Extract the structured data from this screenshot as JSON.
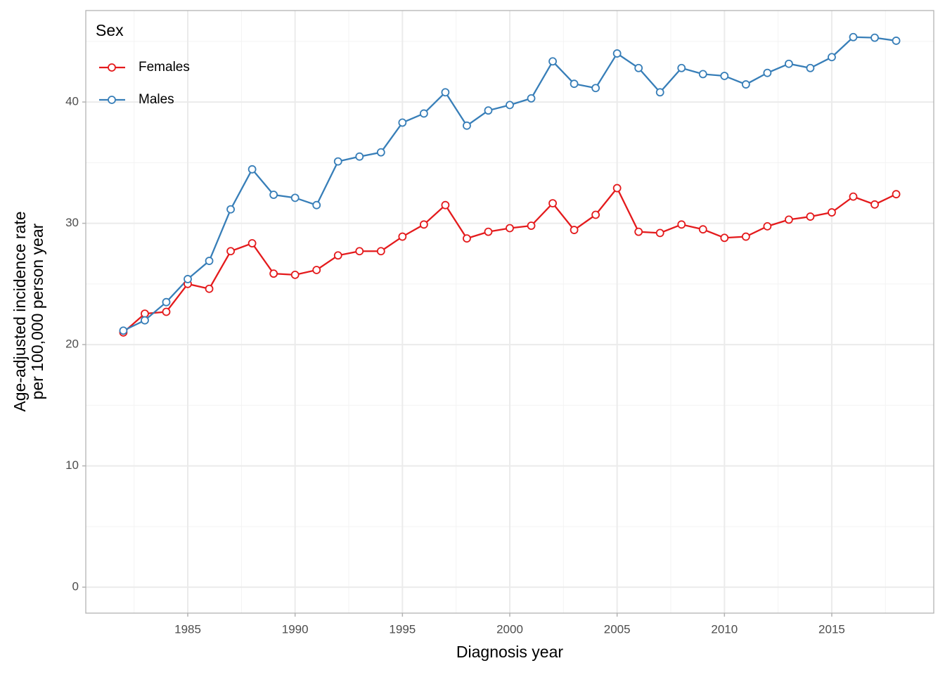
{
  "chart_data": {
    "type": "line",
    "x_label": "Diagnosis year",
    "y_label": [
      "Age-adjusted incidence rate",
      "per 100,000 person year"
    ],
    "legend_title": "Sex",
    "legend_position": "top-left",
    "grid": true,
    "x": [
      1982,
      1983,
      1984,
      1985,
      1986,
      1987,
      1988,
      1989,
      1990,
      1991,
      1992,
      1993,
      1994,
      1995,
      1996,
      1997,
      1998,
      1999,
      2000,
      2001,
      2002,
      2003,
      2004,
      2005,
      2006,
      2007,
      2008,
      2009,
      2010,
      2011,
      2012,
      2013,
      2014,
      2015,
      2016,
      2017,
      2018
    ],
    "series": [
      {
        "name": "Females",
        "color": "#e41a1c",
        "values": [
          21.0,
          22.55,
          22.7,
          25.0,
          24.6,
          27.7,
          28.35,
          25.85,
          25.75,
          26.15,
          27.35,
          27.7,
          27.7,
          28.9,
          29.9,
          31.5,
          28.75,
          29.3,
          29.6,
          29.8,
          31.65,
          29.45,
          30.7,
          32.9,
          29.3,
          29.2,
          29.9,
          29.5,
          28.8,
          28.9,
          29.75,
          30.3,
          30.55,
          30.9,
          32.2,
          31.55,
          32.4
        ]
      },
      {
        "name": "Males",
        "color": "#377eb8",
        "values": [
          21.15,
          22.0,
          23.5,
          25.4,
          26.9,
          31.15,
          34.45,
          32.35,
          32.1,
          31.5,
          35.1,
          35.5,
          35.85,
          38.3,
          39.05,
          40.8,
          38.05,
          39.3,
          39.75,
          40.3,
          43.35,
          41.5,
          41.15,
          44.0,
          42.8,
          40.8,
          42.8,
          42.3,
          42.15,
          41.45,
          42.4,
          43.15,
          42.8,
          43.7,
          45.35,
          45.3,
          45.05
        ]
      }
    ],
    "xlim": [
      1980.25,
      2019.75
    ],
    "xticks": [
      1985,
      1990,
      1995,
      2000,
      2005,
      2010,
      2015
    ],
    "x_minor_ticks": [
      1982.5,
      1987.5,
      1992.5,
      1997.5,
      2002.5,
      2007.5,
      2012.5,
      2017.5
    ],
    "ylim": [
      -2.14,
      47.54
    ],
    "yticks": [
      0,
      10,
      20,
      30,
      40
    ],
    "y_minor_ticks": [
      5,
      15,
      25,
      35,
      45
    ]
  }
}
